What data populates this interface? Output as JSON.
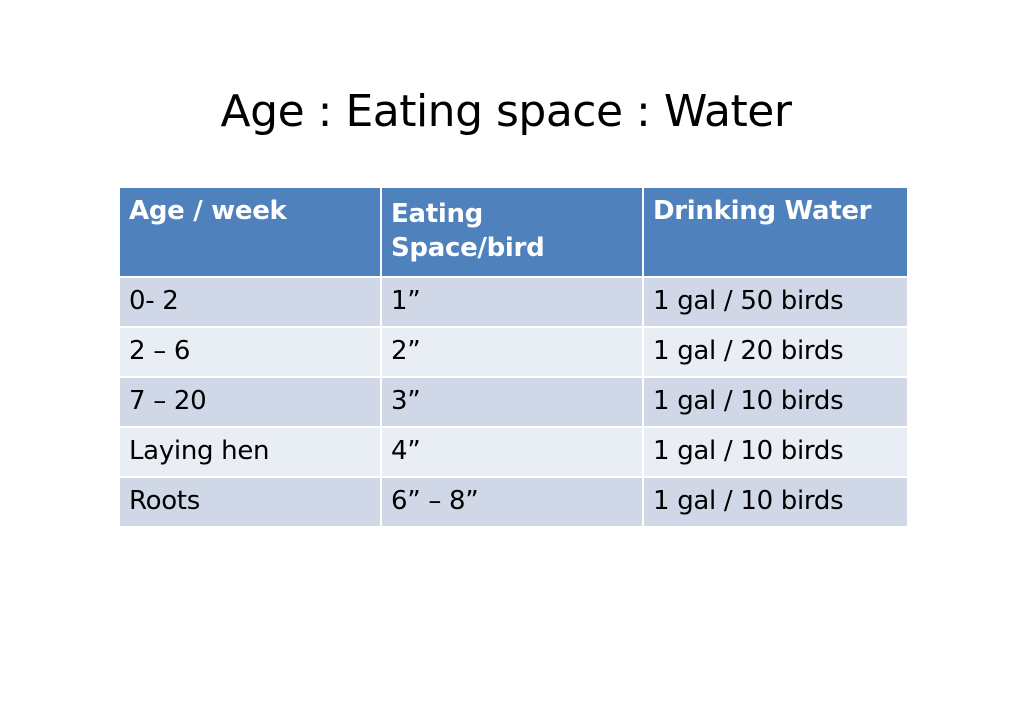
{
  "slide": {
    "title": "Age : Eating space : Water"
  },
  "table": {
    "headers": [
      "Age / week",
      "Eating Space/bird",
      "Drinking Water"
    ],
    "header_eating_line1": "Eating",
    "header_eating_line2": "Space/bird",
    "rows": [
      [
        "0- 2",
        "1”",
        "1 gal / 50 birds"
      ],
      [
        "2 – 6",
        "2”",
        "1 gal / 20 birds"
      ],
      [
        "7 – 20",
        "3”",
        "1 gal / 10 birds"
      ],
      [
        "Laying hen",
        "4”",
        "1 gal / 10 birds"
      ],
      [
        "Roots",
        "6” – 8”",
        "1 gal / 10 birds"
      ]
    ]
  },
  "colors": {
    "header_bg": "#4f81bd",
    "row_odd_bg": "#d0d8e8",
    "row_even_bg": "#e9edf4"
  }
}
